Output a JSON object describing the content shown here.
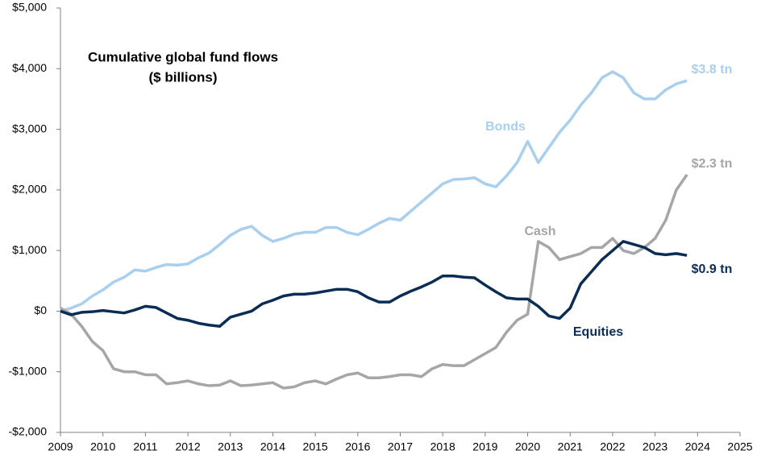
{
  "chart_data": {
    "type": "line",
    "title": "Cumulative global fund flows",
    "subtitle": "($ billions)",
    "x": [
      2009,
      2009.25,
      2009.5,
      2009.75,
      2010,
      2010.25,
      2010.5,
      2010.75,
      2011,
      2011.25,
      2011.5,
      2011.75,
      2012,
      2012.25,
      2012.5,
      2012.75,
      2013,
      2013.25,
      2013.5,
      2013.75,
      2014,
      2014.25,
      2014.5,
      2014.75,
      2015,
      2015.25,
      2015.5,
      2015.75,
      2016,
      2016.25,
      2016.5,
      2016.75,
      2017,
      2017.25,
      2017.5,
      2017.75,
      2018,
      2018.25,
      2018.5,
      2018.75,
      2019,
      2019.25,
      2019.5,
      2019.75,
      2020,
      2020.25,
      2020.5,
      2020.75,
      2021,
      2021.25,
      2021.5,
      2021.75,
      2022,
      2022.25,
      2022.5,
      2022.75,
      2023,
      2023.25,
      2023.5,
      2023.75
    ],
    "series": [
      {
        "name": "Bonds",
        "end_label": "$3.8 tn",
        "color": "#a9cfee",
        "values": [
          0,
          50,
          120,
          250,
          350,
          480,
          560,
          680,
          660,
          720,
          770,
          760,
          780,
          880,
          960,
          1100,
          1250,
          1350,
          1400,
          1250,
          1150,
          1200,
          1270,
          1300,
          1300,
          1380,
          1380,
          1300,
          1260,
          1350,
          1450,
          1530,
          1500,
          1650,
          1800,
          1950,
          2100,
          2170,
          2180,
          2200,
          2100,
          2050,
          2230,
          2450,
          2800,
          2450,
          2700,
          2950,
          3150,
          3400,
          3600,
          3850,
          3950,
          3850,
          3600,
          3500,
          3500,
          3650,
          3750,
          3800
        ]
      },
      {
        "name": "Cash",
        "end_label": "$2.3 tn",
        "color": "#a6a6a6",
        "values": [
          50,
          -50,
          -250,
          -500,
          -650,
          -950,
          -1000,
          -1000,
          -1050,
          -1050,
          -1200,
          -1180,
          -1150,
          -1200,
          -1230,
          -1220,
          -1150,
          -1230,
          -1220,
          -1200,
          -1180,
          -1270,
          -1250,
          -1180,
          -1150,
          -1200,
          -1120,
          -1050,
          -1020,
          -1100,
          -1100,
          -1080,
          -1050,
          -1050,
          -1080,
          -950,
          -880,
          -900,
          -900,
          -800,
          -700,
          -600,
          -350,
          -150,
          -50,
          1150,
          1050,
          850,
          900,
          950,
          1050,
          1050,
          1200,
          1000,
          950,
          1050,
          1200,
          1500,
          2000,
          2250
        ]
      },
      {
        "name": "Equities",
        "end_label": "$0.9 tn",
        "color": "#0b2d55",
        "values": [
          0,
          -60,
          -20,
          -10,
          10,
          -10,
          -30,
          20,
          80,
          60,
          -30,
          -120,
          -150,
          -200,
          -230,
          -250,
          -100,
          -50,
          0,
          120,
          180,
          250,
          280,
          280,
          300,
          330,
          360,
          360,
          320,
          220,
          150,
          150,
          250,
          330,
          400,
          480,
          580,
          580,
          560,
          550,
          430,
          320,
          220,
          200,
          200,
          80,
          -80,
          -120,
          50,
          450,
          650,
          850,
          1000,
          1150,
          1100,
          1050,
          950,
          930,
          950,
          920
        ]
      }
    ],
    "xlim": [
      2009,
      2025
    ],
    "xticks": [
      2009,
      2010,
      2011,
      2012,
      2013,
      2014,
      2015,
      2016,
      2017,
      2018,
      2019,
      2020,
      2021,
      2022,
      2023,
      2024,
      2025
    ],
    "ylim": [
      -2000,
      5000
    ],
    "yticks": [
      {
        "value": -2000,
        "label": "-$2,000"
      },
      {
        "value": -1000,
        "label": "-$1,000"
      },
      {
        "value": 0,
        "label": "$0"
      },
      {
        "value": 1000,
        "label": "$1,000"
      },
      {
        "value": 2000,
        "label": "$2,000"
      },
      {
        "value": 3000,
        "label": "$3,000"
      },
      {
        "value": 4000,
        "label": "$4,000"
      },
      {
        "value": 5000,
        "label": "$5,000"
      }
    ],
    "grid": false
  }
}
